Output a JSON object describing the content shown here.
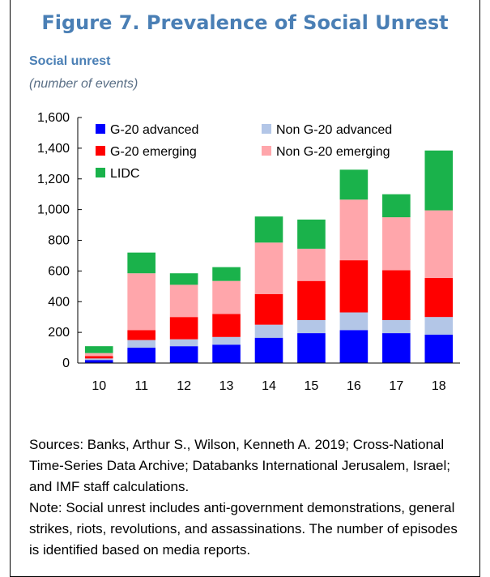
{
  "figure_title": "Figure 7. Prevalence of Social Unrest",
  "chart_data": {
    "type": "bar",
    "stacked": true,
    "title": "Social unrest",
    "subtitle": "(number of events)",
    "categories": [
      "10",
      "11",
      "12",
      "13",
      "14",
      "15",
      "16",
      "17",
      "18"
    ],
    "ylim": [
      0,
      1600
    ],
    "yticks": [
      0,
      200,
      400,
      600,
      800,
      1000,
      1200,
      1400,
      1600
    ],
    "ytick_labels": [
      "0",
      "200",
      "400",
      "600",
      "800",
      "1,000",
      "1,200",
      "1,400",
      "1,600"
    ],
    "grid": false,
    "legend_position": "top-left",
    "series": [
      {
        "name": "G-20 advanced",
        "color": "#0000ff",
        "values": [
          20,
          100,
          110,
          120,
          165,
          195,
          215,
          195,
          185
        ]
      },
      {
        "name": "Non G-20 advanced",
        "color": "#b3c6e7",
        "values": [
          10,
          50,
          45,
          50,
          85,
          85,
          115,
          85,
          115
        ]
      },
      {
        "name": "G-20 emerging",
        "color": "#ff0000",
        "values": [
          15,
          65,
          145,
          150,
          200,
          255,
          340,
          325,
          255
        ]
      },
      {
        "name": "Non G-20 emerging",
        "color": "#ffa6ab",
        "values": [
          20,
          370,
          210,
          215,
          335,
          210,
          395,
          345,
          440
        ]
      },
      {
        "name": "LIDC",
        "color": "#1ab24b",
        "values": [
          45,
          135,
          75,
          90,
          170,
          190,
          195,
          150,
          390
        ]
      }
    ]
  },
  "notes": {
    "sources": "Sources: Banks, Arthur S., Wilson, Kenneth A. 2019; Cross-National Time-Series Data Archive; Databanks International Jerusalem, Israel; and IMF staff calculations.",
    "note": "Note: Social unrest includes anti-government demonstrations, general strikes, riots, revolutions, and assassinations.  The number of episodes is identified based on media reports."
  }
}
